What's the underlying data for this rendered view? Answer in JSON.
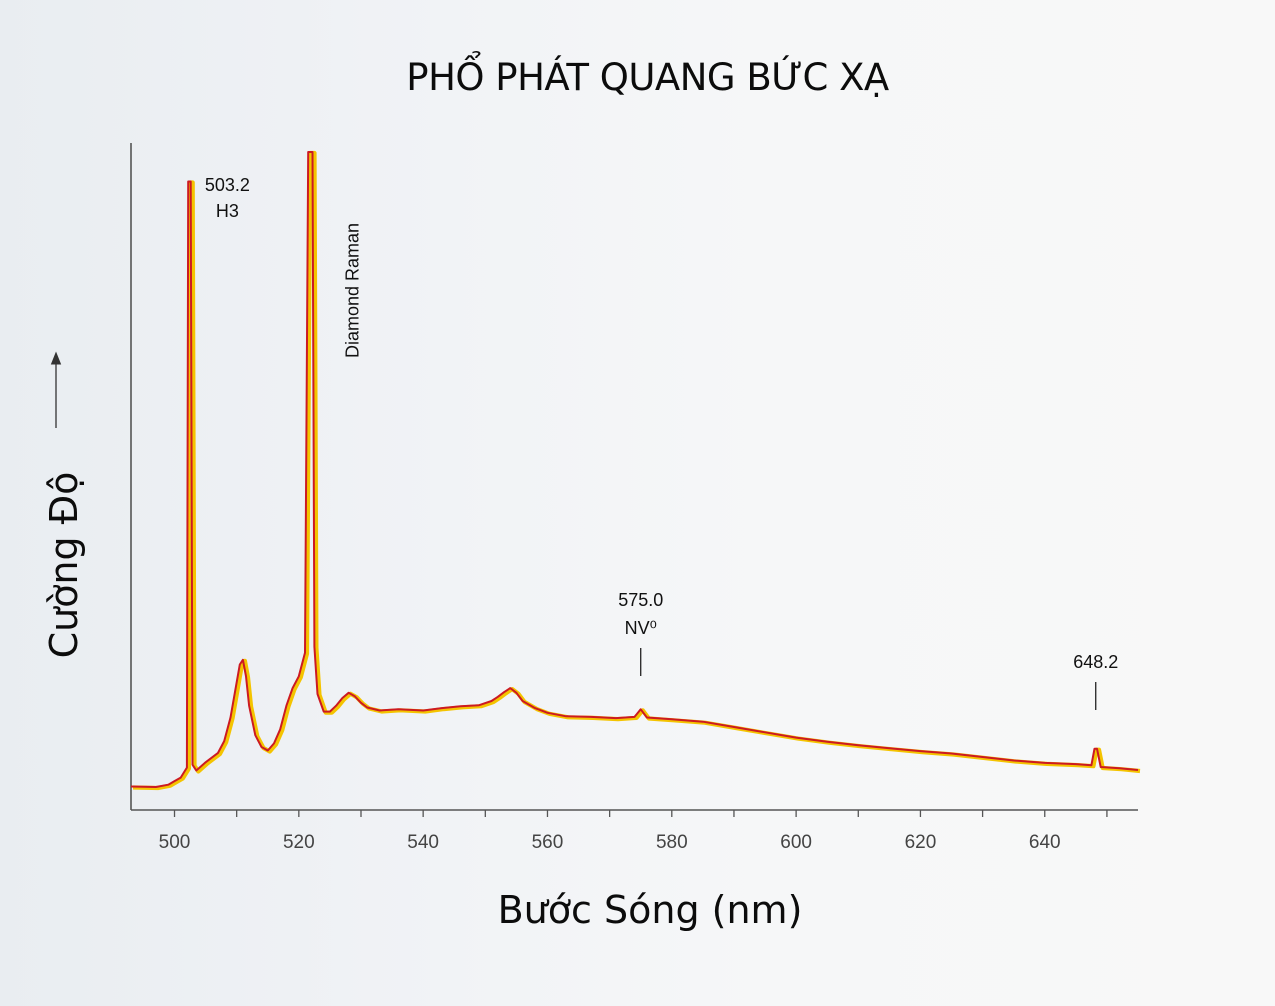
{
  "chart_data": {
    "type": "line",
    "title": "PHỔ PHÁT QUANG BỨC XẠ",
    "xlabel": "Bước Sóng (nm)",
    "ylabel": "Cường Độ",
    "xlim": [
      493,
      655
    ],
    "ylim": [
      0,
      110
    ],
    "x_ticks": [
      500,
      520,
      540,
      560,
      580,
      600,
      620,
      640
    ],
    "grid": false,
    "legend": "none",
    "y_tick_labels": false,
    "colors": {
      "line": "#cc1a22",
      "line_glow": "#f4c400",
      "axis": "#555555"
    },
    "annotations": [
      {
        "x": 503.2,
        "lines": [
          "503.2",
          "H3"
        ]
      },
      {
        "x": 521.9,
        "lines": [
          "Diamond Raman"
        ],
        "orientation": "vertical"
      },
      {
        "x": 575.0,
        "lines": [
          "575.0",
          "NV⁰"
        ]
      },
      {
        "x": 648.2,
        "lines": [
          "648.2"
        ]
      }
    ],
    "series": [
      {
        "points": [
          [
            493,
            2.3
          ],
          [
            497,
            2.2
          ],
          [
            499,
            2.6
          ],
          [
            500,
            3.2
          ],
          [
            501,
            3.8
          ],
          [
            502,
            5.5
          ],
          [
            502.2,
            105
          ],
          [
            502.6,
            105
          ],
          [
            502.9,
            6
          ],
          [
            503.5,
            5
          ],
          [
            505,
            6.4
          ],
          [
            507,
            8.0
          ],
          [
            508,
            10.0
          ],
          [
            509,
            14.0
          ],
          [
            510,
            20.0
          ],
          [
            510.5,
            23.0
          ],
          [
            511,
            23.8
          ],
          [
            511.5,
            21.0
          ],
          [
            512,
            16.0
          ],
          [
            513,
            11.0
          ],
          [
            514,
            9.0
          ],
          [
            515,
            8.4
          ],
          [
            516,
            9.6
          ],
          [
            517,
            12.0
          ],
          [
            518,
            16.0
          ],
          [
            519,
            19.0
          ],
          [
            520,
            21.0
          ],
          [
            521,
            25.0
          ],
          [
            521.5,
            110
          ],
          [
            522.2,
            110
          ],
          [
            522.5,
            26.0
          ],
          [
            523,
            18.0
          ],
          [
            524,
            15.0
          ],
          [
            525,
            15.0
          ],
          [
            526,
            16.0
          ],
          [
            527,
            17.3
          ],
          [
            528,
            18.2
          ],
          [
            529,
            17.6
          ],
          [
            530,
            16.5
          ],
          [
            531,
            15.7
          ],
          [
            533,
            15.2
          ],
          [
            536,
            15.4
          ],
          [
            540,
            15.2
          ],
          [
            543,
            15.6
          ],
          [
            546,
            15.9
          ],
          [
            549,
            16.1
          ],
          [
            551,
            16.8
          ],
          [
            552,
            17.5
          ],
          [
            553,
            18.3
          ],
          [
            554,
            19.0
          ],
          [
            555,
            18.2
          ],
          [
            556,
            16.8
          ],
          [
            558,
            15.6
          ],
          [
            560,
            14.8
          ],
          [
            563,
            14.2
          ],
          [
            567,
            14.1
          ],
          [
            571,
            13.9
          ],
          [
            574,
            14.1
          ],
          [
            575,
            15.4
          ],
          [
            576,
            14.0
          ],
          [
            580,
            13.7
          ],
          [
            585,
            13.3
          ],
          [
            590,
            12.4
          ],
          [
            595,
            11.5
          ],
          [
            600,
            10.6
          ],
          [
            605,
            9.9
          ],
          [
            610,
            9.3
          ],
          [
            615,
            8.8
          ],
          [
            620,
            8.3
          ],
          [
            625,
            7.9
          ],
          [
            630,
            7.3
          ],
          [
            635,
            6.7
          ],
          [
            640,
            6.3
          ],
          [
            645,
            6.1
          ],
          [
            647.5,
            5.9
          ],
          [
            648,
            8.7
          ],
          [
            648.4,
            8.7
          ],
          [
            649,
            5.6
          ],
          [
            652,
            5.4
          ],
          [
            655,
            5.1
          ]
        ]
      }
    ]
  }
}
